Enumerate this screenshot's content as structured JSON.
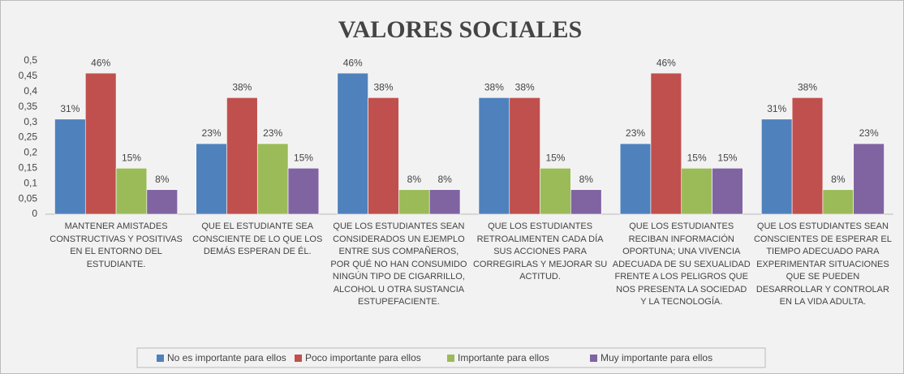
{
  "chart_data": {
    "type": "bar",
    "title": "VALORES SOCIALES",
    "categories": [
      "MANTENER AMISTADES CONSTRUCTIVAS Y POSITIVAS EN EL ENTORNO DEL ESTUDIANTE.",
      "QUE EL ESTUDIANTE SEA CONSCIENTE DE LO QUE LOS DEMÁS ESPERAN DE ÉL.",
      "QUE LOS ESTUDIANTES SEAN CONSIDERADOS UN EJEMPLO ENTRE SUS COMPAÑEROS, POR QUÉ NO HAN CONSUMIDO NINGÚN TIPO DE CIGARRILLO, ALCOHOL U OTRA SUSTANCIA ESTUPEFACIENTE.",
      "QUE LOS ESTUDIANTES RETROALIMENTEN CADA DÍA SUS ACCIONES PARA CORREGIRLAS Y MEJORAR SU ACTITUD.",
      "QUE LOS ESTUDIANTES RECIBAN INFORMACIÓN OPORTUNA; UNA VIVENCIA ADECUADA DE SU SEXUALIDAD FRENTE A LOS PELIGROS QUE NOS PRESENTA LA SOCIEDAD Y LA TECNOLOGÍA.",
      "QUE LOS ESTUDIANTES SEAN CONSCIENTES DE ESPERAR EL TIEMPO ADECUADO PARA EXPERIMENTAR SITUACIONES QUE SE PUEDEN DESARROLLAR Y CONTROLAR EN LA VIDA ADULTA."
    ],
    "series": [
      {
        "name": "No es importante para ellos",
        "color": "#4f81bd",
        "values": [
          0.31,
          0.23,
          0.46,
          0.38,
          0.23,
          0.31
        ],
        "value_labels": [
          "31%",
          "23%",
          "46%",
          "38%",
          "23%",
          "31%"
        ]
      },
      {
        "name": "Poco importante para ellos",
        "color": "#c0504d",
        "values": [
          0.46,
          0.38,
          0.38,
          0.38,
          0.46,
          0.38
        ],
        "value_labels": [
          "46%",
          "38%",
          "38%",
          "38%",
          "46%",
          "38%"
        ]
      },
      {
        "name": "Importante para ellos",
        "color": "#9bbb59",
        "values": [
          0.15,
          0.23,
          0.08,
          0.15,
          0.15,
          0.08
        ],
        "value_labels": [
          "15%",
          "23%",
          "8%",
          "15%",
          "15%",
          "8%"
        ]
      },
      {
        "name": "Muy importante para ellos",
        "color": "#8064a2",
        "values": [
          0.08,
          0.15,
          0.08,
          0.08,
          0.15,
          0.23
        ],
        "value_labels": [
          "8%",
          "15%",
          "8%",
          "8%",
          "15%",
          "23%"
        ]
      }
    ],
    "ylim": [
      0,
      0.5
    ],
    "yticks": [
      0,
      {
        "value": 0.05,
        "label": "0,05"
      },
      {
        "value": 0.1,
        "label": "0,1"
      },
      {
        "value": 0.15,
        "label": "0,15"
      },
      {
        "value": 0.2,
        "label": "0,2"
      },
      {
        "value": 0.25,
        "label": "0,25"
      },
      {
        "value": 0.3,
        "label": "0,3"
      },
      {
        "value": 0.35,
        "label": "0,35"
      },
      {
        "value": 0.4,
        "label": "0,4"
      },
      {
        "value": 0.45,
        "label": "0,45"
      },
      {
        "value": 0.5,
        "label": "0,5"
      }
    ],
    "grid": false,
    "legend": "bottom"
  }
}
